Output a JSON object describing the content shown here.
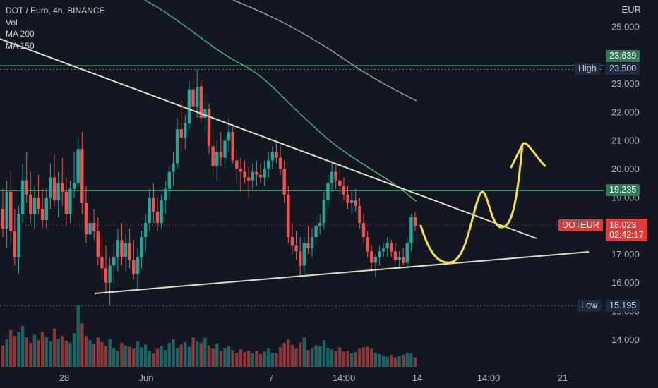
{
  "legend": {
    "symbol_line": "DOT / Euro, 4h, BINANCE",
    "indicators": [
      "Vol",
      "MA 200",
      "MA 150"
    ]
  },
  "currency": "EUR",
  "chart_data": {
    "type": "candlestick",
    "y_ticks": [
      "25.000",
      "24.000",
      "23.000",
      "22.000",
      "21.000",
      "20.000",
      "19.000",
      "18.000",
      "17.000",
      "16.000",
      "15.000",
      "14.000"
    ],
    "ylim": [
      13.05,
      25.85
    ],
    "x_ticks": [
      "28",
      "Jun",
      "7",
      "14:00",
      "14",
      "14:00",
      "21"
    ],
    "levels": {
      "high": {
        "label": "High",
        "value": "23.500"
      },
      "low": {
        "label": "Low",
        "value": "15.195"
      },
      "resistance_1": {
        "value": "23.639"
      },
      "resistance_2": {
        "value": "19.235"
      }
    },
    "last_price": {
      "symbol": "DOTEUR",
      "value": "18.023",
      "countdown": "02:42:17"
    },
    "candles": [
      [
        18.6,
        19.3,
        17.6,
        17.9
      ],
      [
        17.9,
        19.6,
        17.2,
        19.2
      ],
      [
        19.2,
        19.9,
        17.4,
        17.8
      ],
      [
        17.8,
        18.6,
        16.6,
        16.9
      ],
      [
        16.9,
        18.7,
        16.3,
        18.4
      ],
      [
        18.4,
        20.2,
        18.1,
        19.6
      ],
      [
        19.6,
        20.6,
        18.8,
        19.1
      ],
      [
        19.1,
        19.9,
        18.1,
        18.4
      ],
      [
        18.4,
        19.4,
        17.9,
        19.0
      ],
      [
        19.0,
        19.8,
        18.4,
        18.6
      ],
      [
        18.6,
        19.3,
        17.9,
        18.2
      ],
      [
        18.2,
        19.3,
        17.9,
        19.0
      ],
      [
        19.0,
        20.2,
        18.6,
        19.7
      ],
      [
        19.7,
        20.5,
        18.7,
        18.9
      ],
      [
        18.9,
        19.9,
        18.3,
        19.5
      ],
      [
        19.5,
        20.4,
        18.7,
        19.2
      ],
      [
        19.2,
        19.7,
        18.0,
        18.4
      ],
      [
        18.4,
        19.6,
        18.1,
        19.3
      ],
      [
        19.3,
        20.6,
        19.0,
        19.5
      ],
      [
        19.5,
        21.1,
        19.3,
        20.7
      ],
      [
        20.7,
        21.3,
        18.4,
        18.8
      ],
      [
        18.8,
        19.4,
        17.4,
        17.7
      ],
      [
        17.7,
        18.5,
        17.0,
        18.1
      ],
      [
        18.1,
        18.6,
        17.5,
        17.8
      ],
      [
        17.8,
        18.3,
        16.6,
        16.9
      ],
      [
        16.9,
        17.6,
        16.1,
        16.5
      ],
      [
        16.5,
        17.3,
        15.6,
        16.0
      ],
      [
        16.0,
        16.9,
        15.2,
        16.6
      ],
      [
        16.6,
        17.4,
        16.0,
        16.9
      ],
      [
        16.9,
        17.9,
        16.4,
        17.5
      ],
      [
        17.5,
        18.1,
        16.6,
        16.9
      ],
      [
        16.9,
        17.7,
        16.4,
        17.4
      ],
      [
        17.4,
        17.9,
        16.5,
        16.8
      ],
      [
        16.8,
        17.5,
        16.1,
        16.3
      ],
      [
        16.3,
        17.2,
        15.7,
        16.9
      ],
      [
        16.9,
        17.8,
        16.5,
        17.6
      ],
      [
        17.6,
        18.4,
        17.1,
        18.1
      ],
      [
        18.1,
        19.3,
        17.8,
        19.0
      ],
      [
        19.0,
        19.5,
        18.1,
        18.5
      ],
      [
        18.5,
        19.0,
        17.8,
        18.1
      ],
      [
        18.1,
        19.1,
        17.9,
        18.9
      ],
      [
        18.9,
        19.6,
        18.4,
        19.3
      ],
      [
        19.3,
        20.1,
        18.9,
        19.9
      ],
      [
        19.9,
        20.6,
        19.4,
        20.2
      ],
      [
        20.2,
        21.8,
        20.0,
        21.4
      ],
      [
        21.4,
        22.4,
        20.6,
        21.1
      ],
      [
        21.1,
        21.9,
        20.7,
        21.6
      ],
      [
        21.6,
        23.1,
        21.4,
        22.8
      ],
      [
        22.8,
        23.4,
        21.9,
        22.2
      ],
      [
        22.2,
        23.5,
        21.8,
        22.9
      ],
      [
        22.9,
        23.1,
        21.6,
        21.8
      ],
      [
        21.8,
        22.6,
        21.3,
        22.1
      ],
      [
        22.1,
        22.3,
        20.5,
        20.8
      ],
      [
        20.8,
        21.4,
        19.7,
        20.1
      ],
      [
        20.1,
        21.0,
        19.6,
        20.6
      ],
      [
        20.6,
        21.3,
        20.1,
        20.4
      ],
      [
        20.4,
        21.2,
        20.0,
        21.0
      ],
      [
        21.0,
        21.8,
        20.6,
        21.3
      ],
      [
        21.3,
        21.6,
        20.2,
        20.3
      ],
      [
        20.3,
        20.7,
        19.5,
        20.0
      ],
      [
        20.0,
        20.4,
        19.2,
        19.9
      ],
      [
        19.9,
        20.3,
        19.5,
        19.7
      ],
      [
        19.7,
        20.1,
        19.0,
        19.6
      ],
      [
        19.6,
        20.2,
        19.3,
        19.9
      ],
      [
        19.9,
        20.3,
        19.4,
        19.8
      ],
      [
        19.8,
        20.2,
        19.5,
        19.7
      ],
      [
        19.7,
        20.3,
        19.4,
        20.0
      ],
      [
        20.0,
        20.6,
        19.7,
        20.3
      ],
      [
        20.3,
        20.8,
        20.0,
        20.6
      ],
      [
        20.6,
        20.9,
        20.2,
        20.4
      ],
      [
        20.4,
        20.8,
        19.8,
        20.0
      ],
      [
        20.0,
        20.3,
        18.8,
        19.1
      ],
      [
        19.1,
        19.4,
        17.4,
        17.6
      ],
      [
        17.6,
        18.1,
        17.0,
        17.3
      ],
      [
        17.3,
        17.8,
        16.8,
        17.1
      ],
      [
        17.1,
        17.6,
        16.2,
        16.6
      ],
      [
        16.6,
        17.6,
        16.3,
        17.4
      ],
      [
        17.4,
        18.0,
        17.0,
        17.2
      ],
      [
        17.2,
        17.9,
        16.9,
        17.6
      ],
      [
        17.6,
        18.3,
        17.3,
        18.0
      ],
      [
        18.0,
        18.4,
        17.7,
        18.1
      ],
      [
        18.1,
        19.2,
        17.9,
        18.9
      ],
      [
        18.9,
        19.8,
        18.6,
        19.5
      ],
      [
        19.5,
        20.3,
        19.2,
        19.9
      ],
      [
        19.9,
        20.2,
        19.3,
        19.6
      ],
      [
        19.6,
        20.0,
        19.1,
        19.4
      ],
      [
        19.4,
        19.7,
        18.9,
        19.1
      ],
      [
        19.1,
        19.4,
        18.6,
        18.8
      ],
      [
        18.8,
        19.2,
        18.4,
        18.9
      ],
      [
        18.9,
        19.3,
        18.5,
        18.7
      ],
      [
        18.7,
        19.0,
        17.9,
        18.1
      ],
      [
        18.1,
        18.4,
        17.4,
        17.6
      ],
      [
        17.6,
        17.8,
        16.9,
        17.1
      ],
      [
        17.1,
        17.3,
        16.4,
        16.7
      ],
      [
        16.7,
        17.0,
        16.2,
        16.9
      ],
      [
        16.9,
        17.3,
        16.6,
        17.1
      ],
      [
        17.1,
        17.4,
        16.9,
        17.2
      ],
      [
        17.2,
        17.6,
        16.9,
        17.4
      ],
      [
        17.4,
        17.5,
        16.9,
        17.1
      ],
      [
        17.1,
        17.4,
        16.7,
        16.8
      ],
      [
        16.8,
        17.1,
        16.5,
        16.9
      ],
      [
        16.9,
        17.2,
        16.6,
        16.7
      ],
      [
        16.7,
        17.6,
        16.5,
        17.4
      ],
      [
        17.4,
        18.4,
        17.1,
        18.3
      ],
      [
        18.3,
        18.5,
        17.8,
        18.0
      ]
    ],
    "volumes": [
      0.32,
      0.41,
      0.55,
      0.46,
      0.52,
      0.61,
      0.44,
      0.36,
      0.48,
      0.4,
      0.52,
      0.45,
      0.38,
      0.57,
      0.42,
      0.46,
      0.39,
      0.36,
      0.5,
      0.92,
      0.65,
      0.46,
      0.4,
      0.34,
      0.44,
      0.37,
      0.31,
      0.42,
      0.28,
      0.24,
      0.36,
      0.32,
      0.3,
      0.27,
      0.38,
      0.29,
      0.33,
      0.24,
      0.2,
      0.27,
      0.31,
      0.25,
      0.36,
      0.41,
      0.28,
      0.33,
      0.37,
      0.3,
      0.44,
      0.38,
      0.36,
      0.43,
      0.32,
      0.27,
      0.35,
      0.24,
      0.28,
      0.31,
      0.25,
      0.21,
      0.26,
      0.22,
      0.24,
      0.2,
      0.24,
      0.19,
      0.23,
      0.27,
      0.21,
      0.2,
      0.29,
      0.36,
      0.41,
      0.33,
      0.27,
      0.36,
      0.44,
      0.25,
      0.28,
      0.32,
      0.31,
      0.4,
      0.28,
      0.26,
      0.24,
      0.29,
      0.23,
      0.24,
      0.2,
      0.22,
      0.27,
      0.29,
      0.3,
      0.27,
      0.21,
      0.19,
      0.17,
      0.15,
      0.18,
      0.14,
      0.16,
      0.18,
      0.21,
      0.2,
      0.14
    ]
  }
}
